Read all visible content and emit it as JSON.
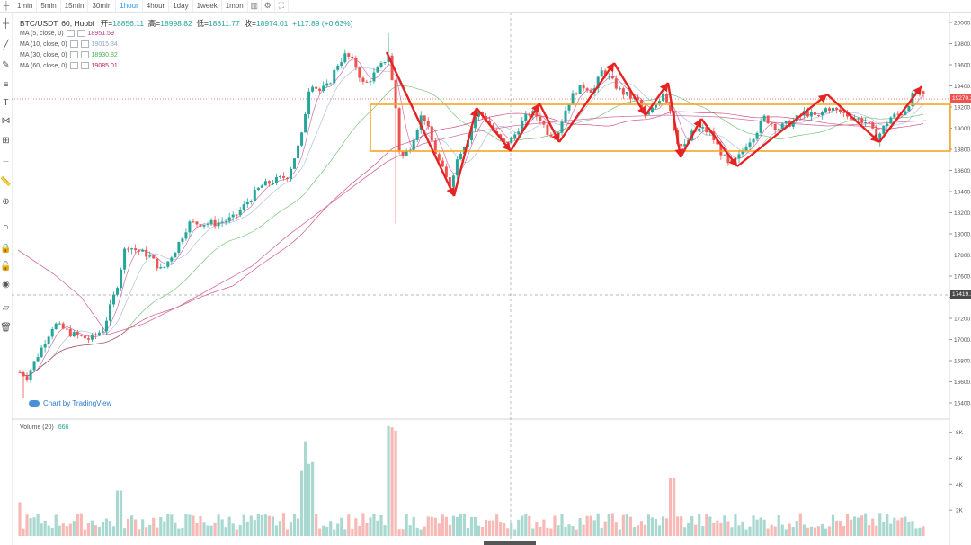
{
  "toolbar": {
    "intervals": [
      "1min",
      "5min",
      "15min",
      "30min",
      "1hour",
      "4hour",
      "1day",
      "1week",
      "1mon"
    ],
    "active": "1hour",
    "icons": [
      "candle-style-icon",
      "settings-icon",
      "fullscreen-icon"
    ]
  },
  "header": {
    "symbol": "BTC/USDT, 60, Huobi",
    "open_label": "开=",
    "open": "18856.11",
    "high_label": "高=",
    "high": "18998.82",
    "low_label": "低=",
    "low": "18811.77",
    "close_label": "收=",
    "close": "18974.01",
    "change": "+117.89 (+0.63%)"
  },
  "indicators": [
    {
      "name": "MA (5, close, 0)",
      "value": "18951.59",
      "color": "#b5338a"
    },
    {
      "name": "MA (10, close, 0)",
      "value": "19015.34",
      "color": "#8fa8c8"
    },
    {
      "name": "MA (30, close, 0)",
      "value": "18930.82",
      "color": "#4caf50"
    },
    {
      "name": "MA (60, close, 0)",
      "value": "19085.01",
      "color": "#c2185b"
    }
  ],
  "volume": {
    "name": "Volume (20)",
    "value": "666"
  },
  "watermark": "Chart by TradingView",
  "price_axis": {
    "ticks": [
      "20000.00",
      "19800.00",
      "19600.00",
      "19400.00",
      "19200.00",
      "19000.00",
      "18800.00",
      "18600.00",
      "18400.00",
      "18200.00",
      "18000.00",
      "17800.00",
      "17600.00",
      "17400.00",
      "17200.00",
      "17000.00",
      "16800.00",
      "16600.00",
      "16400.00"
    ],
    "current_price": "19270.2",
    "crosshair_price": "17419.1"
  },
  "volume_axis": {
    "ticks": [
      "8K",
      "6K",
      "4K",
      "2K"
    ]
  },
  "colors": {
    "up": "#26a69a",
    "down": "#ef5350",
    "vol_up": "#a8d8cf",
    "vol_down": "#f7b9b6",
    "range_box": "#f5a623",
    "arrows": "#e62222"
  }
}
